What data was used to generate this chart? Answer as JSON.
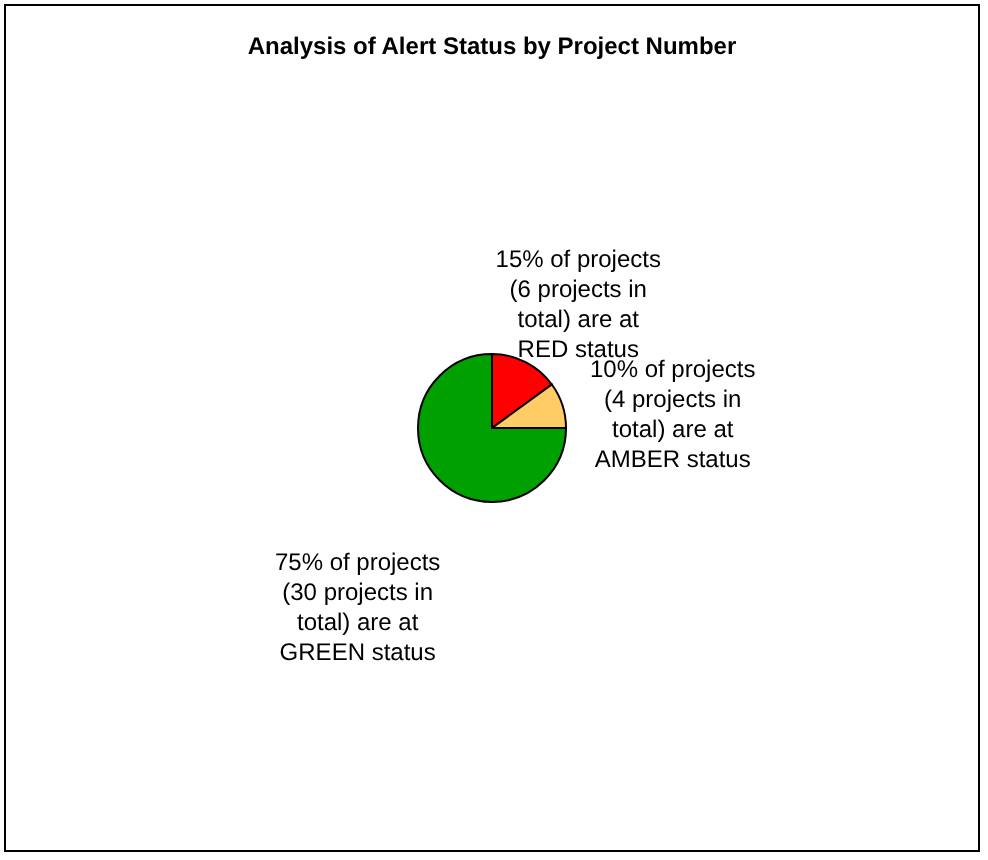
{
  "chart_data": {
    "type": "pie",
    "title": "Analysis of Alert Status by Project Number",
    "categories": [
      null,
      null,
      null
    ],
    "values": [
      15,
      10,
      75
    ],
    "colors": [
      "#ff0000",
      "#ffcc66",
      "#00a000"
    ],
    "value_labels": [
      "15% of projects (6 projects in total) are at RED status",
      "10% of projects (4 projects in total) are at AMBER status",
      "75% of projects (30 projects in total) are at GREEN status"
    ],
    "legend": false
  }
}
